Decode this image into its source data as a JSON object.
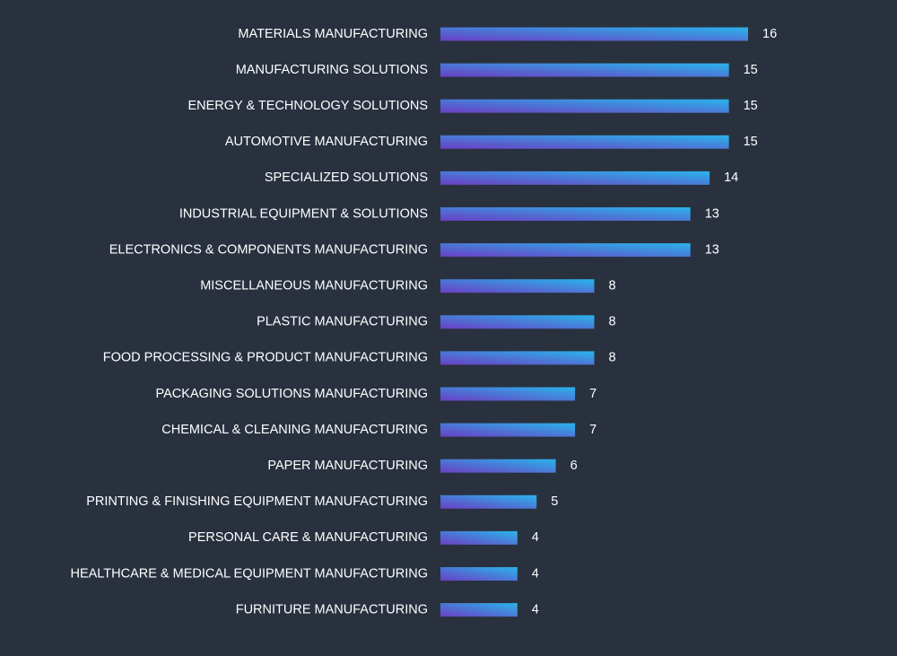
{
  "chart_data": {
    "type": "bar",
    "orientation": "horizontal",
    "categories": [
      "MATERIALS MANUFACTURING",
      "MANUFACTURING SOLUTIONS",
      "ENERGY & TECHNOLOGY SOLUTIONS",
      "AUTOMOTIVE MANUFACTURING",
      "SPECIALIZED SOLUTIONS",
      "INDUSTRIAL EQUIPMENT & SOLUTIONS",
      "ELECTRONICS & COMPONENTS MANUFACTURING",
      "MISCELLANEOUS MANUFACTURING",
      "PLASTIC MANUFACTURING",
      "FOOD PROCESSING & PRODUCT MANUFACTURING",
      "PACKAGING SOLUTIONS MANUFACTURING",
      "CHEMICAL & CLEANING MANUFACTURING",
      "PAPER MANUFACTURING",
      "PRINTING & FINISHING EQUIPMENT  MANUFACTURING",
      "PERSONAL CARE & MANUFACTURING",
      "HEALTHCARE & MEDICAL EQUIPMENT MANUFACTURING",
      "FURNITURE MANUFACTURING"
    ],
    "values": [
      16,
      15,
      15,
      15,
      14,
      13,
      13,
      8,
      8,
      8,
      7,
      7,
      6,
      5,
      4,
      4,
      4
    ],
    "xlim": [
      0,
      16
    ],
    "grid": false,
    "legend": "none",
    "data_labels": true,
    "colors": {
      "background": "#29313f",
      "bar_start": "#6a3fc4",
      "bar_end": "#2ab4ea",
      "text": "#ffffff"
    }
  }
}
